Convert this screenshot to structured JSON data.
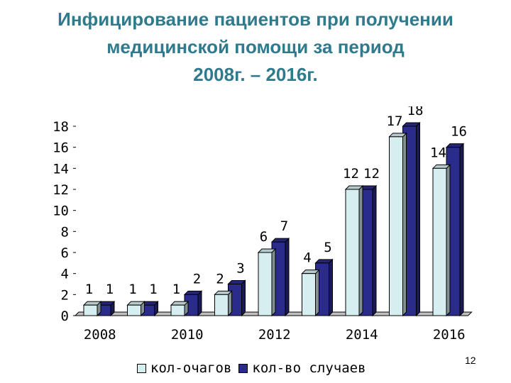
{
  "slide": {
    "title_lines": [
      "Инфицирование пациентов при получении",
      "медицинской помощи за период",
      "2008г. – 2016г."
    ],
    "page_number": "12"
  },
  "colors": {
    "title": "#2f7a8c",
    "series1": "#d6eef0",
    "series2": "#2b2b8c",
    "floor": "#c0c0c0"
  },
  "chart_data": {
    "type": "bar",
    "title": "",
    "xlabel": "",
    "ylabel": "",
    "ylim": [
      0,
      18
    ],
    "yticks": [
      0,
      2,
      4,
      6,
      8,
      10,
      12,
      14,
      16,
      18
    ],
    "categories": [
      "2008",
      "2009",
      "2010",
      "2011",
      "2012",
      "2013",
      "2014",
      "2015",
      "2016"
    ],
    "x_tick_labels": [
      "2008",
      "",
      "2010",
      "",
      "2012",
      "",
      "2014",
      "",
      "2016"
    ],
    "series": [
      {
        "name": "кол-очагов",
        "values": [
          1,
          1,
          1,
          2,
          6,
          4,
          12,
          17,
          14
        ]
      },
      {
        "name": "кол-во случаев",
        "values": [
          1,
          1,
          2,
          3,
          7,
          5,
          12,
          18,
          16
        ]
      }
    ],
    "grid": false,
    "legend_position": "bottom"
  }
}
